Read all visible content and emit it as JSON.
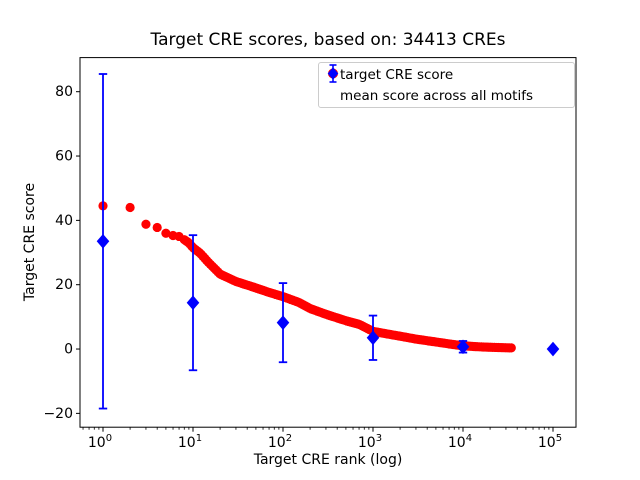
{
  "figure": {
    "background": "#ffffff",
    "axes_edge_color": "#000000",
    "legend_border_color": "#cccccc"
  },
  "chart_data": {
    "type": "scatter",
    "title": "Target CRE scores, based on: 34413 CREs",
    "xlabel": "Target CRE rank (log)",
    "ylabel": "Target CRE score",
    "x_scale": "log",
    "xlim_log10": [
      -0.2556,
      5.2556
    ],
    "ylim": [
      -24.3,
      90.6
    ],
    "yticks": [
      -20,
      0,
      20,
      40,
      60,
      80
    ],
    "xtick_base": "10",
    "xtick_exponents": [
      0,
      1,
      2,
      3,
      4,
      5
    ],
    "minor_tick_digits": [
      2,
      3,
      4,
      5,
      6,
      7,
      8,
      9
    ],
    "grid": false,
    "legend_position": "upper right",
    "n_cres": 34413,
    "series": [
      {
        "name": "target CRE score",
        "marker": "circle",
        "color": "#ff0000",
        "max_rank": 34413,
        "points": [
          [
            1,
            44.5
          ],
          [
            2,
            44.0
          ],
          [
            3,
            38.8
          ],
          [
            4,
            37.8
          ],
          [
            5,
            36.0
          ],
          [
            6,
            35.3
          ],
          [
            7,
            35.0
          ],
          [
            8,
            34.0
          ],
          [
            9,
            33.0
          ],
          [
            10,
            31.5
          ],
          [
            12,
            29.8
          ],
          [
            15,
            26.8
          ],
          [
            20,
            23.3
          ],
          [
            30,
            21.0
          ],
          [
            50,
            19.0
          ],
          [
            70,
            17.6
          ],
          [
            100,
            16.3
          ],
          [
            150,
            14.5
          ],
          [
            200,
            12.6
          ],
          [
            300,
            10.8
          ],
          [
            500,
            8.8
          ],
          [
            700,
            7.7
          ],
          [
            1000,
            5.5
          ],
          [
            1500,
            4.6
          ],
          [
            2000,
            4.0
          ],
          [
            3000,
            3.1
          ],
          [
            5000,
            2.2
          ],
          [
            7000,
            1.6
          ],
          [
            10000,
            1.0
          ],
          [
            15000,
            0.7
          ],
          [
            20000,
            0.55
          ],
          [
            30000,
            0.4
          ],
          [
            34413,
            0.35
          ]
        ]
      },
      {
        "name": "mean score across all motifs",
        "marker": "diamond",
        "color": "#0000ff",
        "x": [
          1,
          10,
          100,
          1000,
          10000,
          100000
        ],
        "mean": [
          33.5,
          14.4,
          8.2,
          3.5,
          0.7,
          0.0
        ],
        "err": [
          52.0,
          21.0,
          12.3,
          6.9,
          1.8,
          0.0
        ]
      }
    ]
  }
}
